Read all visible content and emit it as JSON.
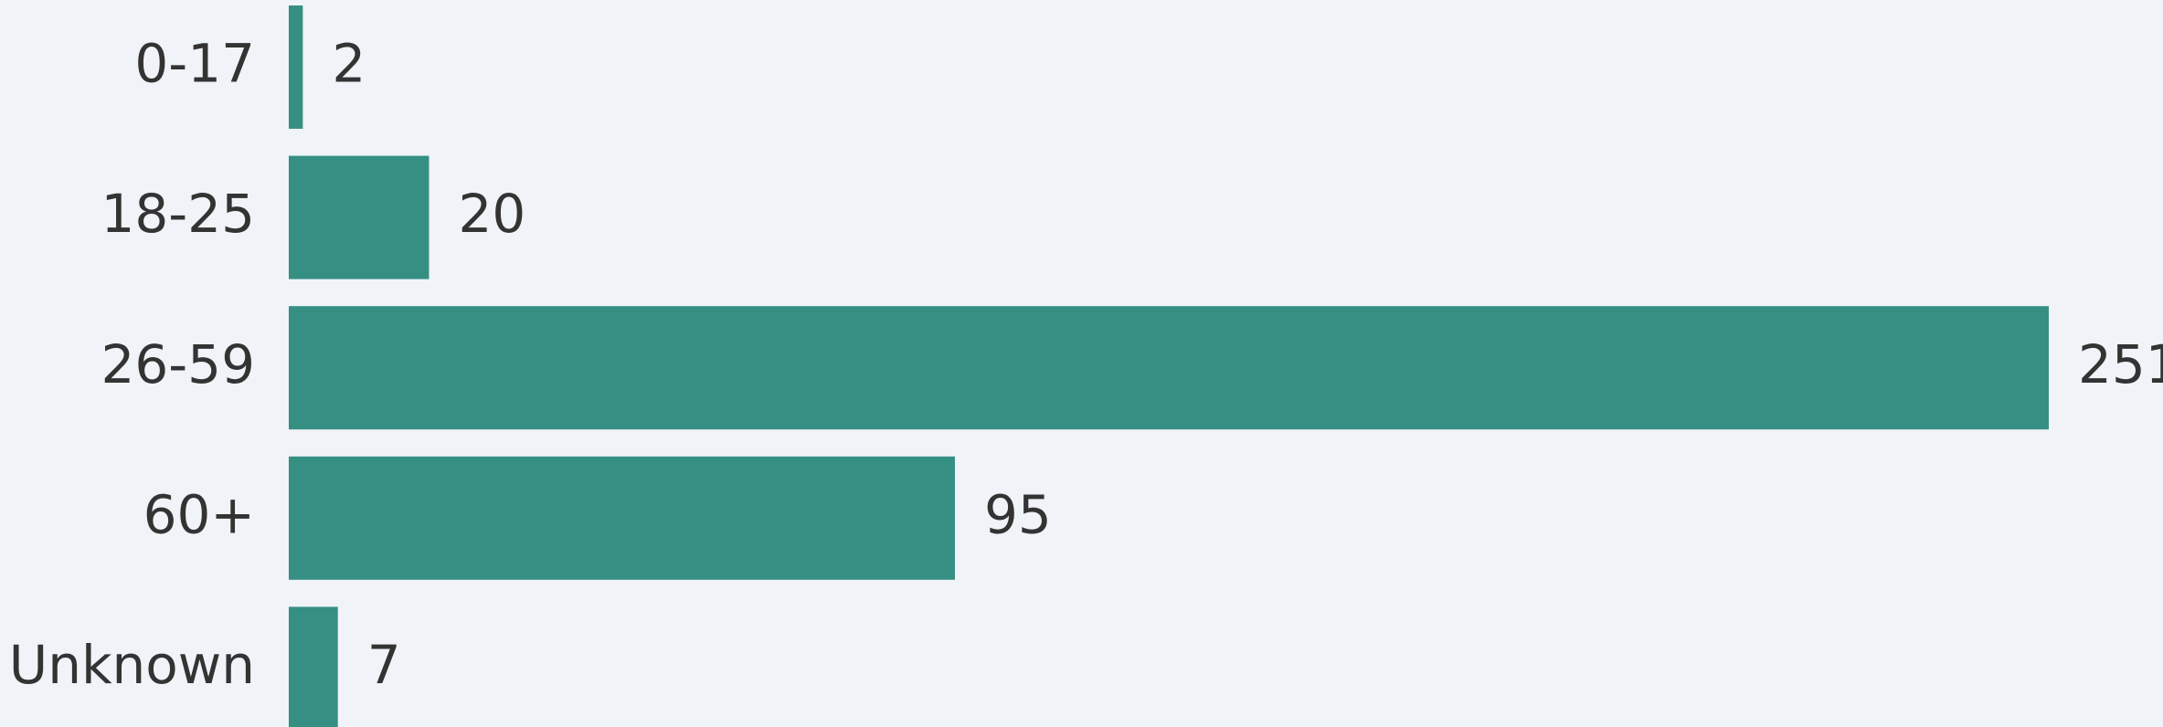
{
  "chart_data": {
    "type": "hbar",
    "categories": [
      "0-17",
      "18-25",
      "26-59",
      "60+",
      "Unknown"
    ],
    "values": [
      2,
      20,
      251,
      95,
      7
    ],
    "color": "#358f83"
  }
}
